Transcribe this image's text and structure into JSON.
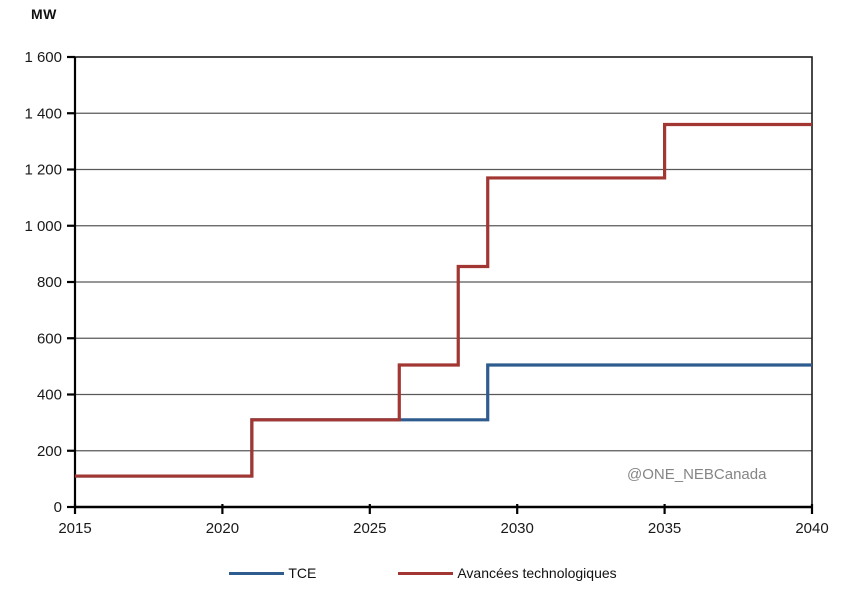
{
  "chart_data": {
    "type": "line",
    "subtype": "step",
    "title": "",
    "unit_label": "MW",
    "xlabel": "",
    "ylabel": "MW",
    "xlim": [
      2015,
      2040
    ],
    "ylim": [
      0,
      1600
    ],
    "x_ticks": [
      2015,
      2020,
      2025,
      2030,
      2035,
      2040
    ],
    "x_tick_labels": [
      "2015",
      "2020",
      "2025",
      "2030",
      "2035",
      "2040"
    ],
    "y_ticks": [
      0,
      200,
      400,
      600,
      800,
      1000,
      1200,
      1400,
      1600
    ],
    "y_tick_labels": [
      "0",
      "200",
      "400",
      "600",
      "800",
      "1 000",
      "1 200",
      "1 400",
      "1 600"
    ],
    "grid": true,
    "legend_position": "bottom",
    "series": [
      {
        "name": "TCE",
        "color": "#2E5C8F",
        "steps": [
          [
            2015,
            110
          ],
          [
            2021,
            310
          ],
          [
            2029,
            505
          ],
          [
            2040,
            505
          ]
        ]
      },
      {
        "name": "Avancées technologiques",
        "color": "#A13632",
        "steps": [
          [
            2015,
            110
          ],
          [
            2021,
            310
          ],
          [
            2026,
            505
          ],
          [
            2028,
            855
          ],
          [
            2029,
            1170
          ],
          [
            2035,
            1360
          ],
          [
            2040,
            1360
          ]
        ]
      }
    ],
    "watermark": "@ONE_NEBCanada",
    "colors": {
      "gridline": "#595959",
      "axis": "#000000",
      "border": "#1a1a1a",
      "tick_label": "#191919",
      "watermark": "#858585"
    }
  }
}
